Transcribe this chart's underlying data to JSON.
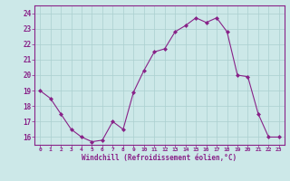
{
  "x": [
    0,
    1,
    2,
    3,
    4,
    5,
    6,
    7,
    8,
    9,
    10,
    11,
    12,
    13,
    14,
    15,
    16,
    17,
    18,
    19,
    20,
    21,
    22,
    23
  ],
  "y": [
    19.0,
    18.5,
    17.5,
    16.5,
    16.0,
    15.7,
    15.8,
    17.0,
    16.5,
    18.9,
    20.3,
    21.5,
    21.7,
    22.8,
    23.2,
    23.7,
    23.4,
    23.7,
    22.8,
    20.0,
    19.9,
    17.5,
    16.0,
    16.0
  ],
  "line_color": "#882288",
  "marker": "D",
  "marker_size": 2,
  "bg_color": "#cce8e8",
  "grid_color": "#aacfcf",
  "xlabel": "Windchill (Refroidissement éolien,°C)",
  "xlabel_color": "#882288",
  "tick_color": "#882288",
  "ylim": [
    15.5,
    24.5
  ],
  "yticks": [
    16,
    17,
    18,
    19,
    20,
    21,
    22,
    23,
    24
  ],
  "xlim": [
    -0.5,
    23.5
  ],
  "xticks": [
    0,
    1,
    2,
    3,
    4,
    5,
    6,
    7,
    8,
    9,
    10,
    11,
    12,
    13,
    14,
    15,
    16,
    17,
    18,
    19,
    20,
    21,
    22,
    23
  ]
}
